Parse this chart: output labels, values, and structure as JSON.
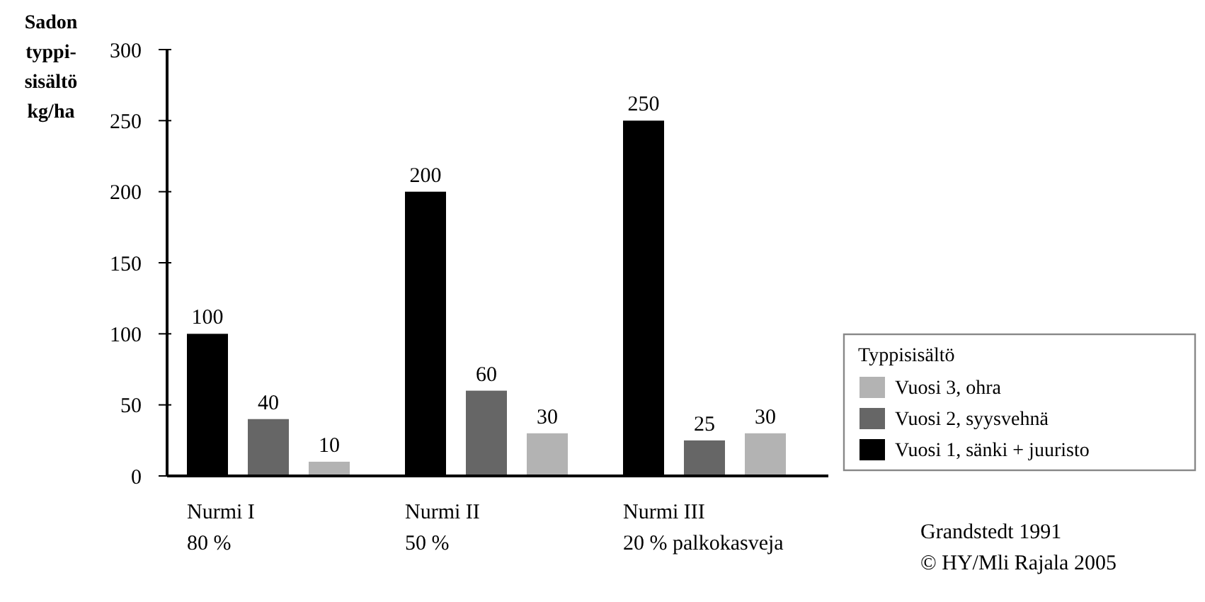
{
  "chart_data": {
    "type": "bar",
    "ylabel": "Sadon\ntyppi-\nsisältö\nkg/ha",
    "legend_title": "Typpisisältö",
    "categories": [
      "Nurmi I\n80 %",
      "Nurmi II\n50 %",
      "Nurmi III\n20 % palkokasveja"
    ],
    "series": [
      {
        "name": "Vuosi 1, sänki + juuristo",
        "color": "#000000",
        "values": [
          100,
          200,
          250
        ]
      },
      {
        "name": "Vuosi 2, syysvehnä",
        "color": "#666666",
        "values": [
          40,
          60,
          25
        ]
      },
      {
        "name": "Vuosi 3, ohra",
        "color": "#b3b3b3",
        "values": [
          10,
          30,
          30
        ]
      }
    ],
    "ylim": [
      0,
      300
    ],
    "yticks": [
      0,
      50,
      100,
      150,
      200,
      250,
      300
    ],
    "data_labels": true,
    "legend": "right",
    "grid": false,
    "annotations": [
      "Grandstedt 1991",
      "© HY/Mli Rajala 2005"
    ]
  }
}
